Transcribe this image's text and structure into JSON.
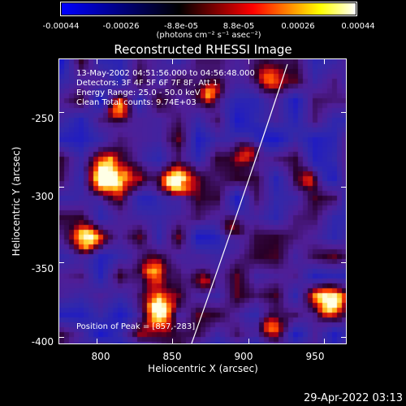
{
  "colorbar": {
    "tick_labels": [
      "-0.00044",
      "-0.00026",
      "-8.8e-05",
      "8.8e-05",
      "0.00026",
      "0.00044"
    ],
    "units_label": "(photons cm⁻² s⁻¹ asec⁻²)",
    "colors": [
      "#0000ff",
      "#000000",
      "#ff0000",
      "#ffff00",
      "#ffffff"
    ]
  },
  "plot": {
    "title": "Reconstructed RHESSI Image",
    "info_lines": [
      "13-May-2002 04:51:56.000 to 04:56:48.000",
      "Detectors: 3F 4F 5F 6F 7F 8F, Att 1",
      "Energy Range: 25.0 - 50.0 keV",
      "Clean    Total counts: 9.74E+03"
    ],
    "peak_label": "Position of Peak = [857,-283]"
  },
  "axes": {
    "x_label": "Heliocentric X (arcsec)",
    "y_label": "Heliocentric Y (arcsec)",
    "x_ticks": [
      "800",
      "850",
      "900",
      "950"
    ],
    "y_ticks": [
      "-250",
      "-300",
      "-350",
      "-400"
    ],
    "x_tick_values": [
      800,
      850,
      900,
      950
    ],
    "y_tick_values": [
      -250,
      -300,
      -350,
      -400
    ],
    "xlim": [
      775,
      965
    ],
    "ylim": [
      -405,
      -214
    ]
  },
  "footer": {
    "timestamp": "29-Apr-2022 03:13"
  }
}
